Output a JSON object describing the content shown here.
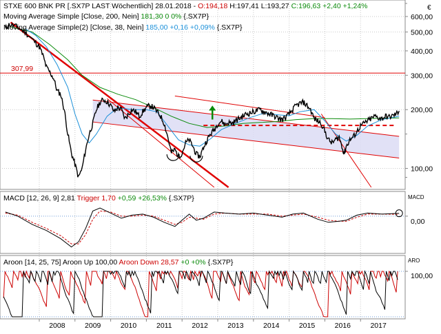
{
  "panels": {
    "main": {
      "legend": [
        {
          "label": "STXE 600 BNK PR [.SX7P LAST Wöchentlich] 28.01.2018 - ",
          "parts": [
            {
              "text": "O:194,18",
              "color": "#cc0000"
            },
            {
              "text": " H:197,41 L:193,27 ",
              "color": "#000000"
            },
            {
              "text": "C:196,63 +2,40 +1,24%",
              "color": "#0a8a0a"
            }
          ]
        },
        {
          "label": "Moving Average Simple [Close, 200, Nein] ",
          "parts": [
            {
              "text": "181,30 0 0%",
              "color": "#0a8a0a"
            },
            {
              "text": " {.SX7P}",
              "color": "#000000"
            }
          ]
        },
        {
          "label": "Moving Average Simple(2) [Close, 38, Nein] ",
          "parts": [
            {
              "text": "185,00 +0,16 +0,09%",
              "color": "#1a8fd8"
            },
            {
              "text": " {.SX7P}",
              "color": "#000000"
            }
          ]
        }
      ],
      "axis_ticks": [
        "600,00",
        "500,00",
        "400,00",
        "300,00",
        "200,00",
        "100,00"
      ],
      "hline_label": "307,99"
    },
    "macd": {
      "legend_prefix": "MACD [12, 26, 9] 2,81 ",
      "legend_trigger": "Trigger 1,70",
      "legend_change": " +0,59 +26,53%",
      "legend_suffix": " {.SX7P}",
      "axis_title": "MACD",
      "axis_tick": "0,00"
    },
    "aroon": {
      "legend_prefix": "Aroon [14, 25, 75] Aroon Up 100,00 ",
      "legend_down": "Aroon Down 28,57",
      "legend_change": " +0 +0%",
      "legend_suffix": " {.SX7P}",
      "axis_title": "ARO",
      "axis_tick": "100,00"
    }
  },
  "corner_label": "€",
  "colors": {
    "price": "#000000",
    "ma200": "#0a8a0a",
    "ma38": "#1a8fd8",
    "trend": "#e00000",
    "channel_fill": "#dcdcf4",
    "grid": "#c8c8c8",
    "arrow": "#0a8a0a"
  },
  "chart_data": {
    "type": "line",
    "x_ticks": [
      "2008",
      "2009",
      "2010",
      "2011",
      "2012",
      "2013",
      "2014",
      "2015",
      "2016",
      "2017"
    ],
    "y_scale": "log",
    "ylim": [
      80,
      700
    ],
    "y_ticks": [
      600,
      500,
      400,
      300,
      200,
      100
    ],
    "hline": 307.99,
    "series": [
      {
        "name": "STXE 600 BNK PR",
        "points": [
          [
            2007.05,
            520
          ],
          [
            2007.15,
            545
          ],
          [
            2007.3,
            540
          ],
          [
            2007.45,
            520
          ],
          [
            2007.6,
            500
          ],
          [
            2007.75,
            470
          ],
          [
            2007.9,
            440
          ],
          [
            2008.0,
            420
          ],
          [
            2008.1,
            380
          ],
          [
            2008.2,
            330
          ],
          [
            2008.3,
            310
          ],
          [
            2008.4,
            290
          ],
          [
            2008.5,
            250
          ],
          [
            2008.6,
            240
          ],
          [
            2008.7,
            200
          ],
          [
            2008.8,
            150
          ],
          [
            2008.9,
            120
          ],
          [
            2009.0,
            105
          ],
          [
            2009.1,
            90
          ],
          [
            2009.2,
            100
          ],
          [
            2009.3,
            125
          ],
          [
            2009.4,
            150
          ],
          [
            2009.5,
            170
          ],
          [
            2009.6,
            200
          ],
          [
            2009.7,
            218
          ],
          [
            2009.8,
            225
          ],
          [
            2009.9,
            220
          ],
          [
            2010.0,
            210
          ],
          [
            2010.1,
            195
          ],
          [
            2010.2,
            205
          ],
          [
            2010.3,
            200
          ],
          [
            2010.4,
            180
          ],
          [
            2010.5,
            190
          ],
          [
            2010.6,
            200
          ],
          [
            2010.7,
            195
          ],
          [
            2010.8,
            185
          ],
          [
            2010.9,
            195
          ],
          [
            2011.0,
            205
          ],
          [
            2011.1,
            210
          ],
          [
            2011.2,
            205
          ],
          [
            2011.3,
            195
          ],
          [
            2011.4,
            185
          ],
          [
            2011.5,
            170
          ],
          [
            2011.6,
            145
          ],
          [
            2011.7,
            120
          ],
          [
            2011.8,
            125
          ],
          [
            2011.9,
            115
          ],
          [
            2012.0,
            120
          ],
          [
            2012.1,
            135
          ],
          [
            2012.2,
            140
          ],
          [
            2012.3,
            130
          ],
          [
            2012.4,
            118
          ],
          [
            2012.5,
            115
          ],
          [
            2012.6,
            128
          ],
          [
            2012.7,
            140
          ],
          [
            2012.8,
            150
          ],
          [
            2012.9,
            158
          ],
          [
            2013.0,
            170
          ],
          [
            2013.1,
            175
          ],
          [
            2013.2,
            168
          ],
          [
            2013.3,
            172
          ],
          [
            2013.4,
            170
          ],
          [
            2013.5,
            175
          ],
          [
            2013.6,
            180
          ],
          [
            2013.7,
            185
          ],
          [
            2013.8,
            190
          ],
          [
            2013.9,
            192
          ],
          [
            2014.0,
            195
          ],
          [
            2014.1,
            198
          ],
          [
            2014.2,
            200
          ],
          [
            2014.3,
            195
          ],
          [
            2014.4,
            192
          ],
          [
            2014.5,
            188
          ],
          [
            2014.6,
            185
          ],
          [
            2014.7,
            180
          ],
          [
            2014.8,
            178
          ],
          [
            2014.9,
            182
          ],
          [
            2015.0,
            190
          ],
          [
            2015.1,
            200
          ],
          [
            2015.2,
            210
          ],
          [
            2015.3,
            215
          ],
          [
            2015.4,
            218
          ],
          [
            2015.5,
            210
          ],
          [
            2015.6,
            200
          ],
          [
            2015.7,
            180
          ],
          [
            2015.8,
            175
          ],
          [
            2015.9,
            170
          ],
          [
            2016.0,
            155
          ],
          [
            2016.1,
            140
          ],
          [
            2016.2,
            135
          ],
          [
            2016.3,
            140
          ],
          [
            2016.4,
            145
          ],
          [
            2016.5,
            125
          ],
          [
            2016.55,
            120
          ],
          [
            2016.6,
            130
          ],
          [
            2016.7,
            140
          ],
          [
            2016.8,
            145
          ],
          [
            2016.9,
            155
          ],
          [
            2017.0,
            165
          ],
          [
            2017.1,
            170
          ],
          [
            2017.2,
            175
          ],
          [
            2017.3,
            180
          ],
          [
            2017.4,
            185
          ],
          [
            2017.5,
            182
          ],
          [
            2017.6,
            180
          ],
          [
            2017.7,
            185
          ],
          [
            2017.8,
            183
          ],
          [
            2017.9,
            186
          ],
          [
            2018.0,
            190
          ],
          [
            2018.08,
            197
          ]
        ]
      },
      {
        "name": "Moving Average Simple [Close, 200, Nein]",
        "points": [
          [
            2007.2,
            530
          ],
          [
            2007.8,
            500
          ],
          [
            2008.3,
            430
          ],
          [
            2008.8,
            360
          ],
          [
            2009.2,
            300
          ],
          [
            2009.7,
            260
          ],
          [
            2010.2,
            240
          ],
          [
            2010.7,
            225
          ],
          [
            2011.2,
            205
          ],
          [
            2011.7,
            185
          ],
          [
            2012.2,
            170
          ],
          [
            2012.7,
            162
          ],
          [
            2013.2,
            165
          ],
          [
            2013.7,
            170
          ],
          [
            2014.2,
            172
          ],
          [
            2014.7,
            174
          ],
          [
            2015.2,
            178
          ],
          [
            2015.7,
            180
          ],
          [
            2016.2,
            180
          ],
          [
            2016.7,
            179
          ],
          [
            2017.2,
            180
          ],
          [
            2017.7,
            181
          ],
          [
            2018.08,
            181.3
          ]
        ]
      },
      {
        "name": "Moving Average Simple(2) [Close, 38, Nein]",
        "points": [
          [
            2007.6,
            520
          ],
          [
            2007.9,
            480
          ],
          [
            2008.2,
            420
          ],
          [
            2008.5,
            340
          ],
          [
            2008.8,
            260
          ],
          [
            2009.0,
            190
          ],
          [
            2009.2,
            150
          ],
          [
            2009.4,
            135
          ],
          [
            2009.6,
            150
          ],
          [
            2009.9,
            185
          ],
          [
            2010.2,
            205
          ],
          [
            2010.6,
            200
          ],
          [
            2011.0,
            200
          ],
          [
            2011.3,
            195
          ],
          [
            2011.6,
            165
          ],
          [
            2011.9,
            140
          ],
          [
            2012.2,
            132
          ],
          [
            2012.5,
            130
          ],
          [
            2012.8,
            142
          ],
          [
            2013.1,
            158
          ],
          [
            2013.5,
            170
          ],
          [
            2013.9,
            182
          ],
          [
            2014.3,
            192
          ],
          [
            2014.7,
            188
          ],
          [
            2015.0,
            186
          ],
          [
            2015.3,
            195
          ],
          [
            2015.7,
            200
          ],
          [
            2016.0,
            175
          ],
          [
            2016.3,
            150
          ],
          [
            2016.6,
            138
          ],
          [
            2016.9,
            148
          ],
          [
            2017.2,
            165
          ],
          [
            2017.6,
            178
          ],
          [
            2018.08,
            185
          ]
        ]
      }
    ],
    "macd": [
      [
        2007.05,
        4
      ],
      [
        2007.4,
        0
      ],
      [
        2007.8,
        -8
      ],
      [
        2008.2,
        -14
      ],
      [
        2008.6,
        -22
      ],
      [
        2008.9,
        -30
      ],
      [
        2009.1,
        -25
      ],
      [
        2009.3,
        -12
      ],
      [
        2009.5,
        5
      ],
      [
        2009.7,
        8
      ],
      [
        2010.0,
        3
      ],
      [
        2010.3,
        -2
      ],
      [
        2010.6,
        1
      ],
      [
        2010.9,
        2
      ],
      [
        2011.2,
        -1
      ],
      [
        2011.5,
        -6
      ],
      [
        2011.8,
        -10
      ],
      [
        2012.0,
        -4
      ],
      [
        2012.2,
        2
      ],
      [
        2012.4,
        -4
      ],
      [
        2012.6,
        -2
      ],
      [
        2012.9,
        4
      ],
      [
        2013.2,
        3
      ],
      [
        2013.6,
        2
      ],
      [
        2014.0,
        3
      ],
      [
        2014.4,
        1
      ],
      [
        2014.8,
        -1
      ],
      [
        2015.1,
        2
      ],
      [
        2015.4,
        3
      ],
      [
        2015.8,
        -3
      ],
      [
        2016.1,
        -6
      ],
      [
        2016.4,
        -5
      ],
      [
        2016.6,
        -4
      ],
      [
        2016.9,
        1
      ],
      [
        2017.2,
        3
      ],
      [
        2017.6,
        2
      ],
      [
        2018.08,
        2.81
      ]
    ],
    "macd_trigger": [
      [
        2007.05,
        3
      ],
      [
        2007.4,
        1
      ],
      [
        2007.8,
        -6
      ],
      [
        2008.2,
        -12
      ],
      [
        2008.6,
        -19
      ],
      [
        2008.9,
        -27
      ],
      [
        2009.1,
        -27
      ],
      [
        2009.3,
        -18
      ],
      [
        2009.5,
        -3
      ],
      [
        2009.7,
        5
      ],
      [
        2010.0,
        4
      ],
      [
        2010.3,
        0
      ],
      [
        2010.6,
        0
      ],
      [
        2010.9,
        1
      ],
      [
        2011.2,
        0
      ],
      [
        2011.5,
        -4
      ],
      [
        2011.8,
        -8
      ],
      [
        2012.0,
        -6
      ],
      [
        2012.2,
        -1
      ],
      [
        2012.4,
        -2
      ],
      [
        2012.6,
        -3
      ],
      [
        2012.9,
        2
      ],
      [
        2013.2,
        3
      ],
      [
        2013.6,
        2
      ],
      [
        2014.0,
        2
      ],
      [
        2014.4,
        2
      ],
      [
        2014.8,
        0
      ],
      [
        2015.1,
        1
      ],
      [
        2015.4,
        2
      ],
      [
        2015.8,
        -1
      ],
      [
        2016.1,
        -4
      ],
      [
        2016.4,
        -5
      ],
      [
        2016.6,
        -5
      ],
      [
        2016.9,
        -1
      ],
      [
        2017.2,
        2
      ],
      [
        2017.6,
        2
      ],
      [
        2018.08,
        1.7
      ]
    ],
    "macd_ylim": [
      -35,
      12
    ],
    "aroon_ylim": [
      0,
      100
    ],
    "aroon_up_seed": 3,
    "aroon_down_seed": 7
  }
}
